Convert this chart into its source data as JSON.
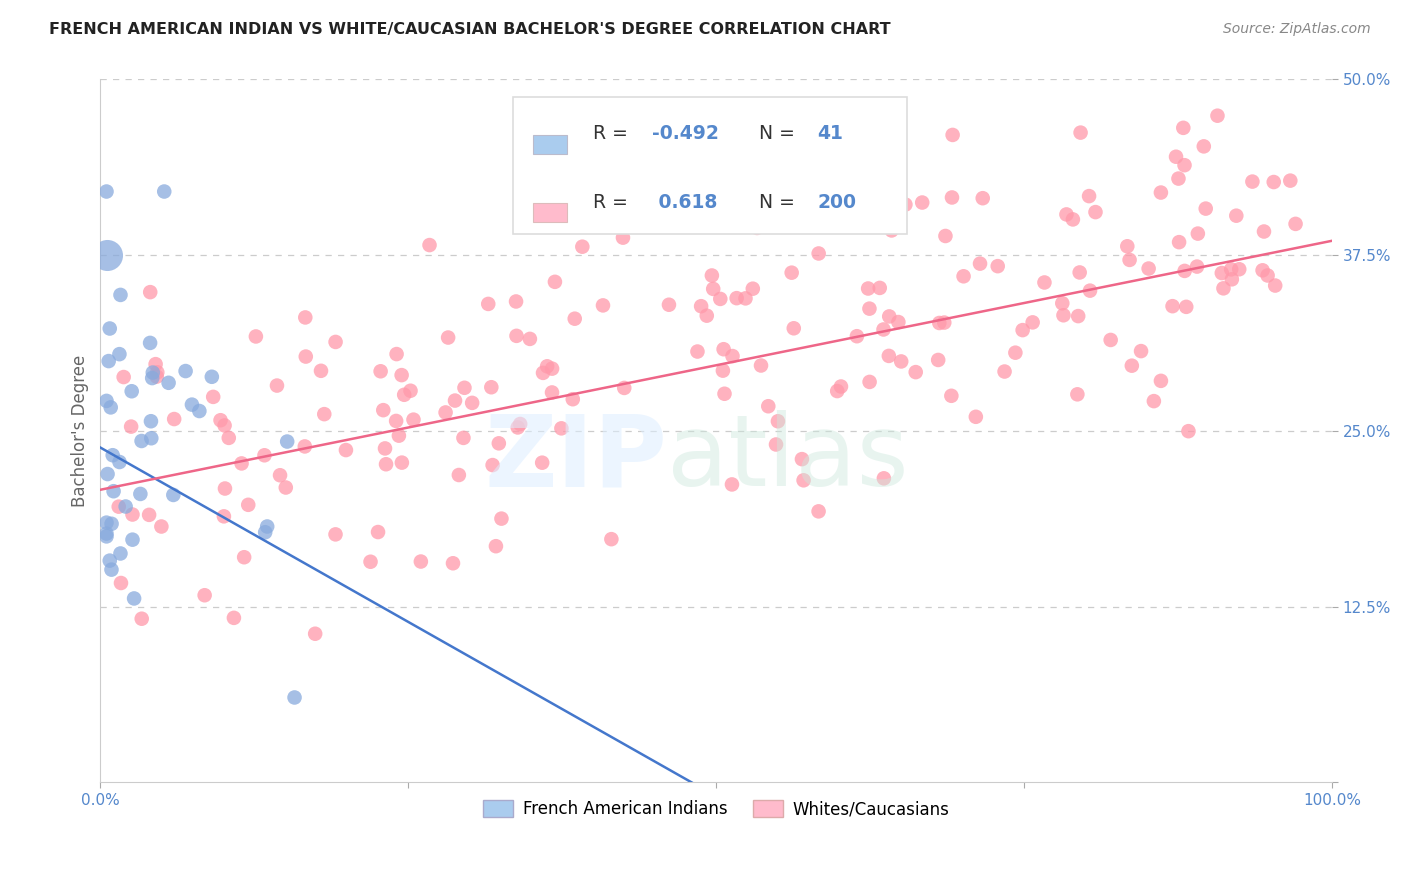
{
  "title": "FRENCH AMERICAN INDIAN VS WHITE/CAUCASIAN BACHELOR'S DEGREE CORRELATION CHART",
  "source": "Source: ZipAtlas.com",
  "ylabel": "Bachelor's Degree",
  "xlim": [
    0,
    1.0
  ],
  "ylim": [
    0,
    0.5
  ],
  "xtick_positions": [
    0.0,
    0.25,
    0.5,
    0.75,
    1.0
  ],
  "xticklabels": [
    "0.0%",
    "",
    "",
    "",
    "100.0%"
  ],
  "ytick_positions": [
    0.0,
    0.125,
    0.25,
    0.375,
    0.5
  ],
  "yticklabels": [
    "",
    "12.5%",
    "25.0%",
    "37.5%",
    "50.0%"
  ],
  "grid_color": "#cccccc",
  "background_color": "#ffffff",
  "legend_R1": "-0.492",
  "legend_N1": "41",
  "legend_R2": "0.618",
  "legend_N2": "200",
  "blue_color": "#88aadd",
  "pink_color": "#ff99aa",
  "blue_line_color": "#4477cc",
  "pink_line_color": "#ee6688",
  "blue_legend_color": "#aaccee",
  "pink_legend_color": "#ffbbcc",
  "tick_label_color": "#5588cc",
  "ylabel_color": "#666666",
  "blue_line_x0": 0.0,
  "blue_line_y0": 0.238,
  "blue_line_x1": 0.48,
  "blue_line_y1": 0.0,
  "pink_line_x0": 0.0,
  "pink_line_y0": 0.208,
  "pink_line_x1": 1.0,
  "pink_line_y1": 0.385
}
